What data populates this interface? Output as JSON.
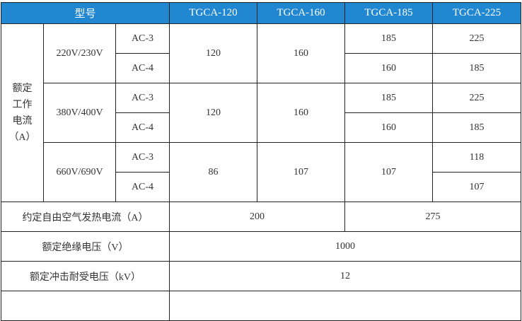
{
  "header": {
    "model_label": "型号",
    "models": [
      "TGCA-120",
      "TGCA-160",
      "TGCA-185",
      "TGCA-225"
    ]
  },
  "rated_current": {
    "label_lines": [
      "额定",
      "工作",
      "电流",
      "（A）"
    ],
    "groups": [
      {
        "voltage": "220V/230V",
        "rows": [
          {
            "cat": "AC-3",
            "v185": "185",
            "v225": "225"
          },
          {
            "cat": "AC-4",
            "v185": "160",
            "v225": "185"
          }
        ],
        "v120": "120",
        "v160": "160"
      },
      {
        "voltage": "380V/400V",
        "rows": [
          {
            "cat": "AC-3",
            "v185": "185",
            "v225": "225"
          },
          {
            "cat": "AC-4",
            "v185": "160",
            "v225": "185"
          }
        ],
        "v120": "120",
        "v160": "160"
      },
      {
        "voltage": "660V/690V",
        "rows": [
          {
            "cat": "AC-3",
            "v225": "118"
          },
          {
            "cat": "AC-4",
            "v225": "107"
          }
        ],
        "v120": "86",
        "v160": "107",
        "v185": "107"
      }
    ]
  },
  "thermal": {
    "label": "约定自由空气发热电流（A）",
    "a": "200",
    "b": "275"
  },
  "insulation": {
    "label": "额定绝缘电压（V）",
    "value": "1000"
  },
  "impulse": {
    "label": "额定冲击耐受电压（kV）",
    "value": "12"
  },
  "colors": {
    "header_bg": "#2187d0",
    "header_text": "#ffffff"
  }
}
